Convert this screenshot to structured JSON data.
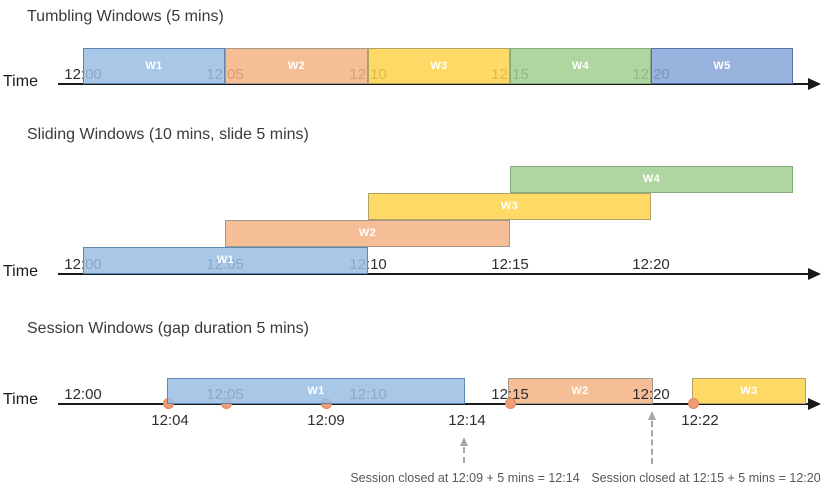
{
  "colors": {
    "axis": "#1a1a1a",
    "title_text": "#3a3a3a",
    "tick_text": "#2e2e2e",
    "window_label_text": "#ffffff",
    "annotation_text": "#595959",
    "dashed_arrow": "#a6a6a6",
    "event_dot_fill": "#ee9d77",
    "event_dot_border": "#e0875c",
    "palette": {
      "blue": {
        "fill": "#9ABEE4",
        "border": "#5E88B4"
      },
      "orange": {
        "fill": "#F3B385",
        "border": "#A6988A"
      },
      "yellow": {
        "fill": "#FFD24B",
        "border": "#B3A266"
      },
      "green": {
        "fill": "#A1CE8F",
        "border": "#87AB7A"
      },
      "indigo": {
        "fill": "#86A7D8",
        "border": "#5471A8"
      }
    }
  },
  "sections": [
    {
      "id": "tumbling",
      "title": "Tumbling Windows (5 mins)",
      "time_label": "Time",
      "ticks": [
        "12:00",
        "12:05",
        "12:10",
        "12:15",
        "12:20"
      ],
      "windows": [
        {
          "label": "W1",
          "start": "12:00",
          "end": "12:05",
          "color": "blue"
        },
        {
          "label": "W2",
          "start": "12:05",
          "end": "12:10",
          "color": "orange"
        },
        {
          "label": "W3",
          "start": "12:10",
          "end": "12:15",
          "color": "yellow"
        },
        {
          "label": "W4",
          "start": "12:15",
          "end": "12:20",
          "color": "green"
        },
        {
          "label": "W5",
          "start": "12:20",
          "end": "",
          "color": "indigo"
        }
      ]
    },
    {
      "id": "sliding",
      "title": "Sliding Windows (10 mins, slide 5 mins)",
      "time_label": "Time",
      "ticks": [
        "12:00",
        "12:05",
        "12:10",
        "12:15",
        "12:20"
      ],
      "windows": [
        {
          "label": "W1",
          "start": "12:00",
          "end": "12:10",
          "color": "blue"
        },
        {
          "label": "W2",
          "start": "12:05",
          "end": "12:15",
          "color": "orange"
        },
        {
          "label": "W3",
          "start": "12:10",
          "end": "12:20",
          "color": "yellow"
        },
        {
          "label": "W4",
          "start": "12:15",
          "end": "",
          "color": "green"
        }
      ]
    },
    {
      "id": "session",
      "title": "Session Windows (gap duration 5 mins)",
      "time_label": "Time",
      "ticks": [
        "12:00",
        "12:05",
        "12:10",
        "12:15",
        "12:20"
      ],
      "windows": [
        {
          "label": "W1",
          "start": "12:04",
          "end": "12:14",
          "color": "blue"
        },
        {
          "label": "W2",
          "start": "12:15",
          "end": "12:20",
          "color": "orange"
        },
        {
          "label": "W3",
          "start": "12:22",
          "end": "",
          "color": "yellow"
        }
      ],
      "events": [
        "12:04",
        "12:05",
        "12:09",
        "12:15",
        "12:22"
      ],
      "event_labels": [
        "12:04",
        "12:09",
        "12:14",
        "12:22"
      ],
      "annotations": [
        "Session closed at 12:09 + 5 mins = 12:14",
        "Session closed at 12:15 + 5 mins = 12:20"
      ]
    }
  ]
}
